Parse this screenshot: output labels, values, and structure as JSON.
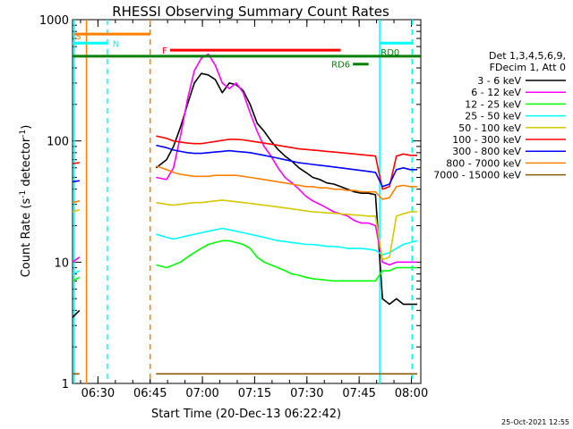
{
  "chart_data": {
    "type": "line",
    "title": "RHESSI Observing Summary Count Rates",
    "xlabel": "Start Time (20-Dec-13 06:22:42)",
    "ylabel_main": "Count Rate (s",
    "ylabel_sup": "-1",
    "ylabel_mid": " detector",
    "ylabel_end": ")",
    "footer_date": "25-Oct-2021 12:55",
    "x_range_minutes": [
      0,
      100
    ],
    "y_range": [
      1,
      1000
    ],
    "y_scale": "log",
    "x_ticks": [
      {
        "label": "06:30",
        "min": 7.3
      },
      {
        "label": "06:45",
        "min": 22.3
      },
      {
        "label": "07:00",
        "min": 37.3
      },
      {
        "label": "07:15",
        "min": 52.3
      },
      {
        "label": "07:30",
        "min": 67.3
      },
      {
        "label": "07:45",
        "min": 82.3
      },
      {
        "label": "08:00",
        "min": 97.3
      }
    ],
    "y_ticks": [
      {
        "label": "1",
        "value": 1
      },
      {
        "label": "10",
        "value": 10
      },
      {
        "label": "100",
        "value": 100
      },
      {
        "label": "1000",
        "value": 1000
      }
    ],
    "legend_header": [
      "Det 1,3,4,5,6,9,",
      "FDecim 1, Att 0"
    ],
    "series": [
      {
        "name": "3 - 6 keV",
        "color": "#000000",
        "x": [
          0,
          2,
          4,
          22,
          24,
          27,
          29,
          31,
          33,
          35,
          37,
          39,
          41,
          43,
          45,
          47,
          49,
          51,
          53,
          55,
          57,
          59,
          61,
          63,
          65,
          67,
          69,
          71,
          73,
          75,
          77,
          79,
          81,
          83,
          85,
          87,
          89,
          91,
          93,
          95,
          97,
          99
        ],
        "y": [
          3.5,
          4,
          null,
          null,
          60,
          70,
          90,
          130,
          200,
          300,
          360,
          350,
          320,
          250,
          300,
          290,
          260,
          200,
          140,
          120,
          100,
          85,
          75,
          68,
          60,
          55,
          50,
          48,
          45,
          44,
          42,
          40,
          38,
          37,
          37,
          36,
          5,
          4.5,
          5,
          4.5,
          4.5,
          4.5
        ]
      },
      {
        "name": "6 - 12 keV",
        "color": "#ff00ff",
        "x": [
          0,
          2,
          4,
          22,
          24,
          27,
          29,
          31,
          33,
          35,
          37,
          39,
          41,
          43,
          45,
          47,
          49,
          51,
          53,
          55,
          57,
          59,
          61,
          63,
          65,
          67,
          69,
          71,
          73,
          75,
          77,
          79,
          81,
          83,
          85,
          87,
          89,
          91,
          93,
          95,
          97,
          99
        ],
        "y": [
          10,
          11,
          null,
          null,
          50,
          48,
          60,
          110,
          220,
          380,
          480,
          520,
          420,
          300,
          270,
          300,
          250,
          170,
          120,
          90,
          75,
          60,
          50,
          45,
          40,
          35,
          32,
          30,
          28,
          26,
          25,
          24,
          22,
          21,
          21,
          20,
          10,
          9.5,
          10,
          10,
          10,
          10
        ]
      },
      {
        "name": "12 - 25 keV",
        "color": "#00ff00",
        "x": [
          0,
          2,
          4,
          22,
          24,
          27,
          29,
          31,
          33,
          35,
          37,
          39,
          41,
          43,
          45,
          47,
          49,
          51,
          53,
          55,
          57,
          59,
          61,
          63,
          65,
          67,
          69,
          71,
          73,
          75,
          77,
          79,
          81,
          83,
          85,
          87,
          89,
          91,
          93,
          95,
          97,
          99
        ],
        "y": [
          7,
          7.5,
          null,
          null,
          9.5,
          9,
          9.5,
          10,
          11,
          12,
          13,
          14,
          14.5,
          15,
          15,
          14.5,
          14,
          13,
          11,
          10,
          9.5,
          9,
          8.5,
          8,
          7.8,
          7.5,
          7.3,
          7.2,
          7.1,
          7,
          7,
          7,
          7,
          7,
          7,
          7,
          8.5,
          8.5,
          9,
          9,
          9,
          9
        ]
      },
      {
        "name": "25 - 50 keV",
        "color": "#00ffff",
        "x": [
          0,
          2,
          4,
          22,
          24,
          27,
          29,
          31,
          33,
          35,
          37,
          39,
          41,
          43,
          45,
          47,
          49,
          51,
          53,
          55,
          57,
          59,
          61,
          63,
          65,
          67,
          69,
          71,
          73,
          75,
          77,
          79,
          81,
          83,
          85,
          87,
          89,
          91,
          93,
          95,
          97,
          99
        ],
        "y": [
          8,
          8.5,
          null,
          null,
          17,
          16,
          15.5,
          16,
          16.5,
          17,
          17.5,
          18,
          18.5,
          19,
          18.5,
          18,
          17.5,
          17,
          16.5,
          16,
          15.5,
          15,
          14.8,
          14.5,
          14.3,
          14,
          14,
          13.8,
          13.5,
          13.5,
          13.3,
          13,
          13,
          13,
          12.8,
          12.5,
          11.5,
          12,
          13,
          14,
          14.5,
          15
        ]
      },
      {
        "name": "50 - 100 keV",
        "color": "#d4c800",
        "x": [
          0,
          2,
          4,
          22,
          24,
          27,
          29,
          31,
          33,
          35,
          37,
          39,
          41,
          43,
          45,
          47,
          49,
          51,
          53,
          55,
          57,
          59,
          61,
          63,
          65,
          67,
          69,
          71,
          73,
          75,
          77,
          79,
          81,
          83,
          85,
          87,
          89,
          91,
          93,
          95,
          97,
          99
        ],
        "y": [
          26,
          27,
          null,
          null,
          31,
          30,
          29.5,
          30,
          30.5,
          31,
          31,
          31.5,
          32,
          32.5,
          32,
          31.5,
          31,
          30.5,
          30,
          29.5,
          29,
          28.5,
          28,
          27.5,
          27,
          26.5,
          26,
          25.8,
          25.5,
          25.3,
          25,
          24.8,
          24.5,
          24.3,
          24,
          24,
          10.5,
          11,
          24,
          25,
          26,
          26
        ]
      },
      {
        "name": "100 - 300 keV",
        "color": "#ff0000",
        "x": [
          0,
          2,
          4,
          22,
          24,
          27,
          29,
          31,
          33,
          35,
          37,
          39,
          41,
          43,
          45,
          47,
          49,
          51,
          53,
          55,
          57,
          59,
          61,
          63,
          65,
          67,
          69,
          71,
          73,
          75,
          77,
          79,
          81,
          83,
          85,
          87,
          89,
          91,
          93,
          95,
          97,
          99
        ],
        "y": [
          65,
          66,
          null,
          null,
          110,
          105,
          100,
          98,
          96,
          95,
          95,
          97,
          99,
          101,
          103,
          103,
          102,
          100,
          98,
          96,
          94,
          92,
          90,
          88,
          86,
          85,
          84,
          83,
          82,
          81,
          80,
          79,
          78,
          77,
          76,
          75,
          40,
          42,
          75,
          78,
          76,
          76
        ]
      },
      {
        "name": "300 - 800 keV",
        "color": "#0000ff",
        "x": [
          0,
          2,
          4,
          22,
          24,
          27,
          29,
          31,
          33,
          35,
          37,
          39,
          41,
          43,
          45,
          47,
          49,
          51,
          53,
          55,
          57,
          59,
          61,
          63,
          65,
          67,
          69,
          71,
          73,
          75,
          77,
          79,
          81,
          83,
          85,
          87,
          89,
          91,
          93,
          95,
          97,
          99
        ],
        "y": [
          46,
          47,
          null,
          null,
          92,
          88,
          84,
          82,
          80,
          79,
          79,
          80,
          81,
          82,
          83,
          82,
          81,
          80,
          78,
          76,
          74,
          72,
          70,
          68,
          66,
          65,
          64,
          63,
          62,
          61,
          60,
          59,
          58,
          57,
          56,
          55,
          42,
          44,
          58,
          60,
          58,
          58
        ]
      },
      {
        "name": "800 - 7000 keV",
        "color": "#ff8000",
        "x": [
          0,
          2,
          4,
          22,
          24,
          27,
          29,
          31,
          33,
          35,
          37,
          39,
          41,
          43,
          45,
          47,
          49,
          51,
          53,
          55,
          57,
          59,
          61,
          63,
          65,
          67,
          69,
          71,
          73,
          75,
          77,
          79,
          81,
          83,
          85,
          87,
          89,
          91,
          93,
          95,
          97,
          99
        ],
        "y": [
          31,
          32,
          null,
          null,
          62,
          58,
          55,
          53,
          52,
          51,
          51,
          51,
          52,
          52,
          52,
          52,
          51,
          50,
          49,
          48,
          47,
          46,
          45,
          44,
          43,
          42,
          42,
          41,
          41,
          40,
          40,
          39,
          39,
          38,
          38,
          38,
          33,
          34,
          42,
          43,
          42,
          42
        ]
      },
      {
        "name": "7000 - 15000 keV",
        "color": "#8b5a00",
        "x": [
          0,
          2,
          4,
          22,
          24,
          27,
          29,
          31,
          33,
          35,
          37,
          39,
          41,
          43,
          45,
          47,
          49,
          51,
          53,
          55,
          57,
          59,
          61,
          63,
          65,
          67,
          69,
          71,
          73,
          75,
          77,
          79,
          81,
          83,
          85,
          87,
          89,
          91,
          93,
          95,
          97,
          99
        ],
        "y": [
          1.2,
          1.2,
          null,
          null,
          1.2,
          1.2,
          1.2,
          1.2,
          1.2,
          1.2,
          1.2,
          1.2,
          1.2,
          1.2,
          1.2,
          1.2,
          1.2,
          1.2,
          1.2,
          1.2,
          1.2,
          1.2,
          1.2,
          1.2,
          1.2,
          1.2,
          1.2,
          1.2,
          1.2,
          1.2,
          1.2,
          1.2,
          1.2,
          1.2,
          1.2,
          1.2,
          1.2,
          1.2,
          1.2,
          1.2,
          1.2,
          1.2
        ]
      }
    ],
    "flag_bars": [
      {
        "label": "S",
        "color": "#ff8000",
        "x0": 0.5,
        "x1": 22.3,
        "y": 760,
        "label_x": 0.8,
        "label_side": "above-left"
      },
      {
        "label": "N",
        "color": "#00ffff",
        "x0": 0.0,
        "x1": 10.0,
        "y": 640,
        "label_x": 11.5,
        "label_side": "right"
      },
      {
        "label": "N",
        "color": "#00ffff",
        "x0": 88.2,
        "x1": 97.5,
        "y": 640,
        "label_x": null,
        "label_side": "none"
      },
      {
        "label": "F",
        "color": "#ff0000",
        "x0": 28.0,
        "x1": 77.0,
        "y": 560,
        "label_x": 24.5,
        "label_side": "left"
      },
      {
        "label": "RD0",
        "color": "#008000",
        "x0": 0.0,
        "x1": 99.8,
        "y": 500,
        "label_x": 88.5,
        "label_side": "above"
      },
      {
        "label": "RD6",
        "color": "#008000",
        "x0": 80.5,
        "x1": 85.0,
        "y": 430,
        "label_x": 79.5,
        "label_side": "left"
      }
    ],
    "vertical_lines": [
      {
        "x": 0.5,
        "color": "#00ffff",
        "style": "solid"
      },
      {
        "x": 4.0,
        "color": "#ff8000",
        "style": "solid"
      },
      {
        "x": 10.0,
        "color": "#00ffff",
        "style": "dashed"
      },
      {
        "x": 22.3,
        "color": "#ff8000",
        "style": "dashed"
      },
      {
        "x": 88.2,
        "color": "#00ffff",
        "style": "solid"
      },
      {
        "x": 97.5,
        "color": "#00ffff",
        "style": "dashed"
      }
    ]
  }
}
